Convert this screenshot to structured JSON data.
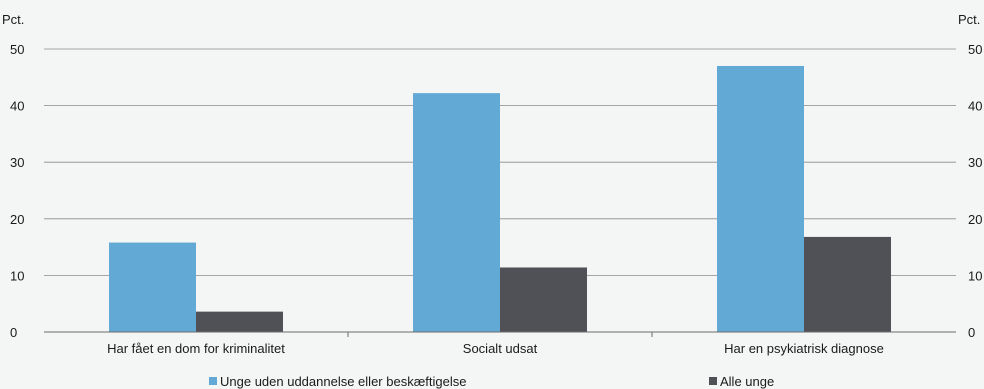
{
  "chart_data": {
    "type": "bar",
    "title": "",
    "xlabel": "",
    "ylabel": "Pct.",
    "ylabel_right": "Pct.",
    "ylim": [
      0,
      50
    ],
    "yticks": [
      0,
      10,
      20,
      30,
      40,
      50
    ],
    "grid": true,
    "legend_position": "bottom",
    "categories": [
      "Har fået en dom for kriminalitet",
      "Socialt udsat",
      "Har en psykiatrisk diagnose"
    ],
    "series": [
      {
        "name": "Unge uden uddannelse eller beskæftigelse",
        "color": "#62a9d5",
        "values": [
          15.8,
          42.2,
          47.0
        ]
      },
      {
        "name": "Alle unge",
        "color": "#505157",
        "values": [
          3.6,
          11.4,
          16.8
        ]
      }
    ]
  }
}
